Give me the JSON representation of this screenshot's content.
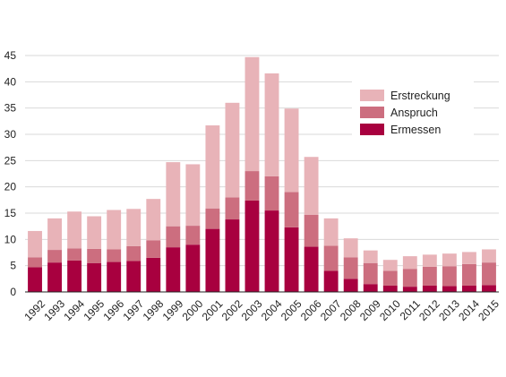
{
  "chart_data": {
    "type": "bar",
    "stacked": true,
    "categories": [
      "1992",
      "1993",
      "1994",
      "1995",
      "1996",
      "1997",
      "1998",
      "1999",
      "2000",
      "2001",
      "2002",
      "2003",
      "2004",
      "2005",
      "2006",
      "2007",
      "2008",
      "2009",
      "2010",
      "2011",
      "2012",
      "2013",
      "2014",
      "2015"
    ],
    "series": [
      {
        "name": "Ermessen",
        "color": "#a8003f",
        "values": [
          4.7,
          5.6,
          6.0,
          5.5,
          5.7,
          5.9,
          6.5,
          8.5,
          9.0,
          12.0,
          13.8,
          17.4,
          15.5,
          12.3,
          8.6,
          4.0,
          2.5,
          1.5,
          1.2,
          1.0,
          1.2,
          1.1,
          1.2,
          1.3
        ]
      },
      {
        "name": "Anspruch",
        "color": "#cc6e7f",
        "values": [
          1.9,
          2.4,
          2.3,
          2.7,
          2.4,
          2.8,
          3.3,
          4.0,
          3.6,
          3.9,
          4.2,
          5.6,
          6.5,
          6.7,
          6.1,
          4.8,
          4.1,
          4.0,
          2.8,
          3.4,
          3.6,
          3.8,
          4.1,
          4.3
        ]
      },
      {
        "name": "Erstreckung",
        "color": "#e8b3b8",
        "values": [
          5.0,
          6.0,
          7.0,
          6.2,
          7.5,
          7.1,
          7.9,
          12.2,
          11.7,
          15.8,
          18.0,
          21.7,
          19.6,
          15.9,
          11.0,
          5.2,
          3.6,
          2.4,
          2.1,
          2.4,
          2.3,
          2.4,
          2.3,
          2.5
        ]
      }
    ],
    "ylim": [
      0,
      45
    ],
    "yticks": [
      0,
      5,
      10,
      15,
      20,
      25,
      30,
      35,
      40,
      45
    ],
    "grid": true,
    "legend_position": "top-right",
    "legend_order": [
      "Erstreckung",
      "Anspruch",
      "Ermessen"
    ],
    "title": "",
    "xlabel": "",
    "ylabel": ""
  }
}
